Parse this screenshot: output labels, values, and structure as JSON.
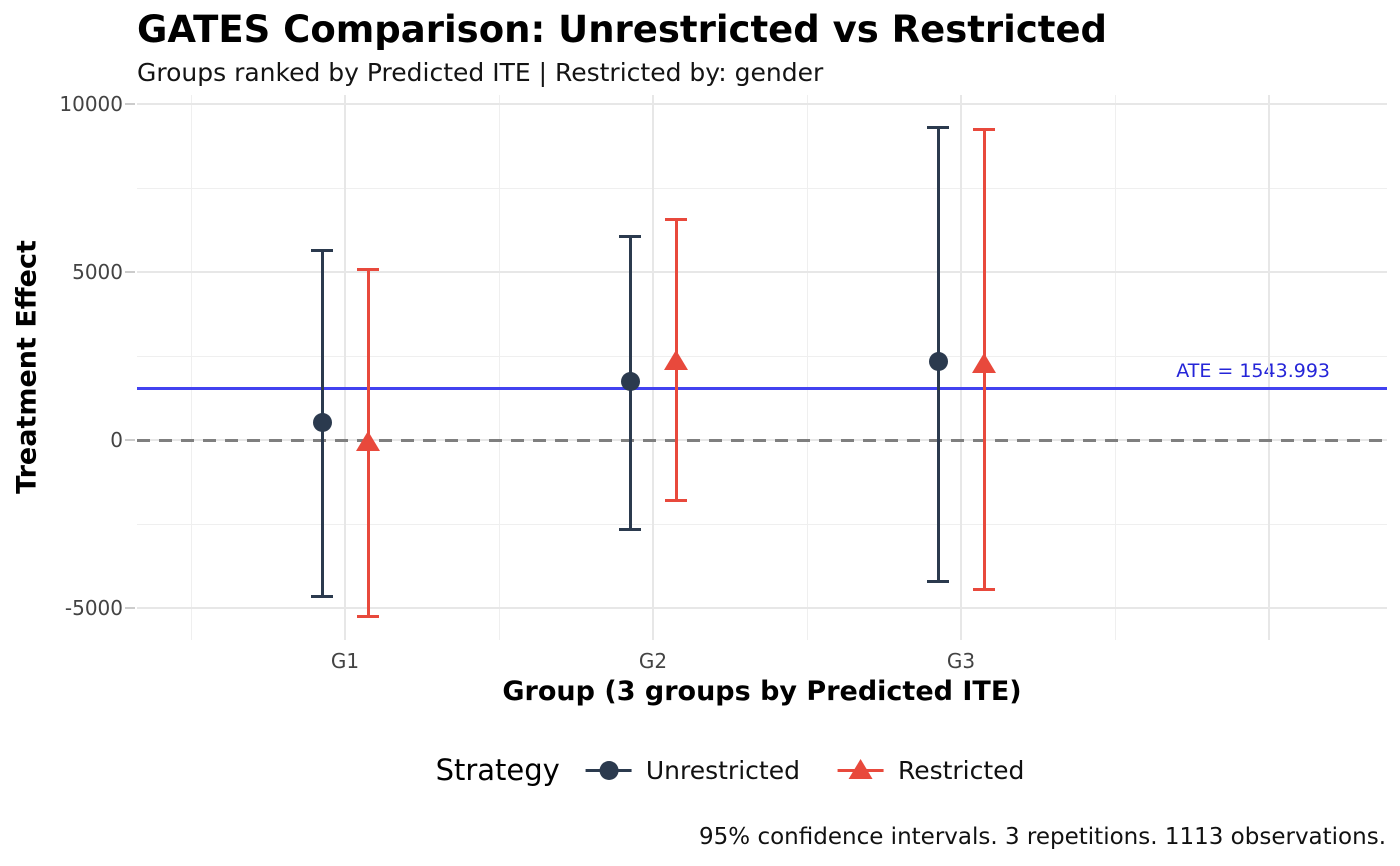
{
  "chart_data": {
    "type": "errorbar",
    "title": "GATES Comparison: Unrestricted vs Restricted",
    "subtitle": "Groups ranked by Predicted ITE | Restricted by: gender",
    "xlabel": "Group (3 groups by Predicted ITE)",
    "ylabel": "Treatment Effect",
    "caption": "95% confidence intervals. 3 repetitions. 1113 observations.",
    "legend_title": "Strategy",
    "legend_position": "bottom",
    "grid": true,
    "categories": [
      "G1",
      "G2",
      "G3"
    ],
    "series": [
      {
        "name": "Unrestricted",
        "marker": "circle",
        "color": "#2b3a4e",
        "estimates": [
          510,
          1740,
          2330
        ],
        "ci_low": [
          -4660,
          -2650,
          -4200
        ],
        "ci_high": [
          5650,
          6050,
          9300
        ]
      },
      {
        "name": "Restricted",
        "marker": "triangle",
        "color": "#e8493c",
        "estimates": [
          -40,
          2380,
          2280
        ],
        "ci_low": [
          -5260,
          -1810,
          -4460
        ],
        "ci_high": [
          5090,
          6570,
          9250
        ]
      }
    ],
    "reference_lines": [
      {
        "name": "ATE",
        "value": 1543.993,
        "label": "ATE = 1543.993",
        "color": "#4242f0",
        "style": "solid"
      },
      {
        "name": "zero",
        "value": 0,
        "color": "#7f7f7f",
        "style": "dashed"
      }
    ],
    "y_ticks": [
      {
        "label": "10000",
        "value": 10000
      },
      {
        "label": "5000",
        "value": 5000
      },
      {
        "label": "0",
        "value": 0
      },
      {
        "label": "-5000",
        "value": -5000
      }
    ],
    "y_minor": [
      7500,
      2500,
      -2500
    ],
    "ylim": [
      -5950,
      10270
    ]
  }
}
